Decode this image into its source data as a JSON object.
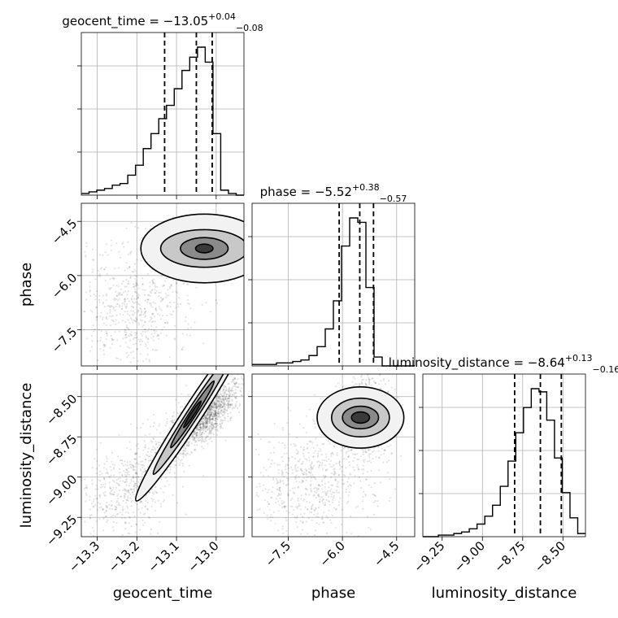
{
  "chart_data": {
    "type": "corner",
    "parameters": [
      "geocent_time",
      "phase",
      "luminosity_distance"
    ],
    "titles": [
      {
        "param": "geocent_time",
        "prefix": "geocent_time = −13.05",
        "plus": "+0.04",
        "minus": "−0.08"
      },
      {
        "param": "phase",
        "prefix": "phase = −5.52",
        "plus": "+0.38",
        "minus": "−0.57"
      },
      {
        "param": "luminosity_distance",
        "prefix": "luminosity_distance = −8.64",
        "plus": "+0.13",
        "minus": "−0.16"
      }
    ],
    "axis_labels": {
      "x": [
        "geocent_time",
        "phase",
        "luminosity_distance"
      ],
      "y": [
        "phase",
        "luminosity_distance"
      ]
    },
    "ranges": {
      "geocent_time": [
        -13.34,
        -12.93
      ],
      "phase": [
        -8.5,
        -4.0
      ],
      "luminosity_distance": [
        -9.37,
        -8.36
      ]
    },
    "ticks": {
      "geocent_time": {
        "values": [
          -13.3,
          -13.2,
          -13.1,
          -13.0
        ],
        "labels": [
          "−13.3",
          "−13.2",
          "−13.1",
          "−13.0"
        ]
      },
      "phase": {
        "values": [
          -7.5,
          -6.0,
          -4.5
        ],
        "labels": [
          "−7.5",
          "−6.0",
          "−4.5"
        ]
      },
      "luminosity_distance": {
        "values": [
          -9.25,
          -9.0,
          -8.75,
          -8.5
        ],
        "labels": [
          "−9.25",
          "−9.00",
          "−8.75",
          "−8.50"
        ]
      }
    },
    "quantiles": {
      "geocent_time": [
        -13.13,
        -13.05,
        -13.01
      ],
      "phase": [
        -6.09,
        -5.52,
        -5.14
      ],
      "luminosity_distance": [
        -8.8,
        -8.64,
        -8.51
      ]
    },
    "histograms": {
      "geocent_time": {
        "edges_min": -13.34,
        "edges_max": -12.93,
        "counts": [
          1,
          2,
          3,
          4,
          6,
          7,
          12,
          18,
          28,
          37,
          46,
          54,
          64,
          75,
          83,
          89,
          80,
          37,
          3,
          1,
          0
        ]
      },
      "phase": {
        "edges_min": -8.5,
        "edges_max": -4.0,
        "counts": [
          1,
          1,
          1,
          2,
          2,
          3,
          4,
          7,
          13,
          25,
          44,
          81,
          100,
          97,
          53,
          6,
          0,
          0,
          0,
          0
        ]
      },
      "luminosity_distance": {
        "edges_min": -9.37,
        "edges_max": -8.36,
        "counts": [
          0,
          0,
          1,
          1,
          2,
          3,
          5,
          8,
          13,
          20,
          32,
          48,
          66,
          82,
          94,
          92,
          74,
          50,
          28,
          12,
          2
        ]
      }
    },
    "grid": true
  }
}
